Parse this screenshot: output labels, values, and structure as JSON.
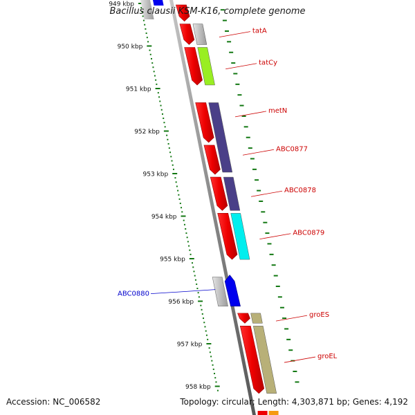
{
  "title": "Bacillus clausii KSM-K16, complete genome",
  "footer": {
    "accession": "Accession: NC_006582",
    "summary": "Topology: circular; Length: 4,303,871 bp; Genes: 4,192"
  },
  "colors": {
    "red": "#ee0000",
    "gray_gene": "#c0c0c0",
    "blue_gene": "#0000ee",
    "label_red": "#cc0000",
    "label_blue": "#0000cc",
    "tick_green": "#117711",
    "tatCy": "#99ee22",
    "metN": "#4a3f88",
    "ABC0879": "#00eeee",
    "groES_groEL": "#b8b078"
  },
  "axis": {
    "tick_labels": [
      {
        "kbp": 949,
        "label": "949 kbp"
      },
      {
        "kbp": 950,
        "label": "950 kbp"
      },
      {
        "kbp": 951,
        "label": "951 kbp"
      },
      {
        "kbp": 952,
        "label": "952 kbp"
      },
      {
        "kbp": 953,
        "label": "953 kbp"
      },
      {
        "kbp": 954,
        "label": "954 kbp"
      },
      {
        "kbp": 955,
        "label": "955 kbp"
      },
      {
        "kbp": 956,
        "label": "956 kbp"
      },
      {
        "kbp": 957,
        "label": "957 kbp"
      },
      {
        "kbp": 958,
        "label": "958 kbp"
      }
    ]
  },
  "genes": [
    {
      "name": "tatA",
      "start": 949.45,
      "end": 950.0,
      "color_key": "gray_gene",
      "label_color_key": "label_red",
      "labeled": true
    },
    {
      "name": "tatCy",
      "start": 950.0,
      "end": 950.95,
      "color_key": "tatCy",
      "label_color_key": "label_red",
      "labeled": true
    },
    {
      "name": "metN",
      "start": 951.3,
      "end": 953.0,
      "color_key": "metN",
      "label_color_key": "label_red",
      "labeled": true
    },
    {
      "name": "ABC0877",
      "start": 951.3,
      "end": 953.0,
      "color_key": "metN",
      "label_color_key": "label_red",
      "labeled": true,
      "label_only": true
    },
    {
      "name": "ABC0878",
      "start": 953.05,
      "end": 953.9,
      "color_key": "metN",
      "label_color_key": "label_red",
      "labeled": true
    },
    {
      "name": "ABC0879",
      "start": 953.9,
      "end": 955.05,
      "color_key": "ABC0879",
      "label_color_key": "label_red",
      "labeled": true
    },
    {
      "name": "ABC0880",
      "start": 955.4,
      "end": 956.15,
      "color_key": "blue_gene",
      "label_color_key": "label_blue",
      "labeled": true
    },
    {
      "name": "groES",
      "start": 956.25,
      "end": 956.55,
      "color_key": "groES_groEL",
      "label_color_key": "label_red",
      "labeled": true
    },
    {
      "name": "groEL",
      "start": 956.55,
      "end": 958.2,
      "color_key": "groES_groEL",
      "label_color_key": "label_red",
      "labeled": true
    }
  ]
}
